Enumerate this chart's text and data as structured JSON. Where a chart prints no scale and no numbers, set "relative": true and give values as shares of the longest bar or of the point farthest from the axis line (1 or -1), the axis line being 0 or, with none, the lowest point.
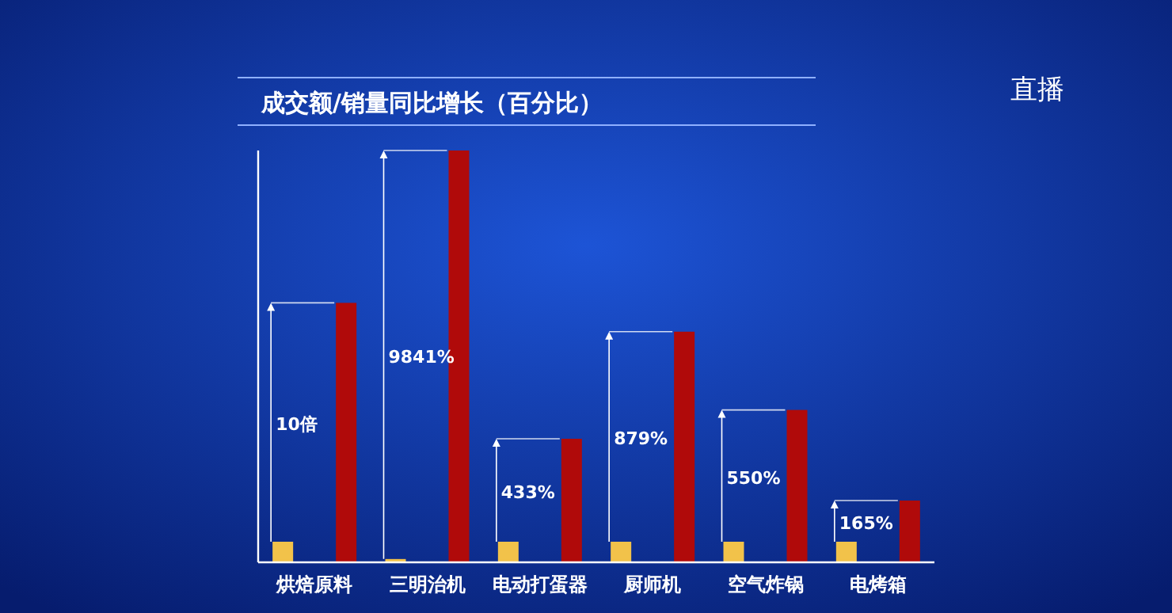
{
  "chart_data": {
    "type": "bar",
    "title": "成交额/销量同比增长（百分比）",
    "relative": true,
    "categories": [
      "烘焙原料",
      "三明治机",
      "电动打蛋器",
      "厨师机",
      "空气炸锅",
      "电烤箱"
    ],
    "series": [
      {
        "color": "#f2c24a",
        "values": [
          0.05,
          0.008,
          0.05,
          0.05,
          0.05,
          0.05
        ]
      },
      {
        "color": "#b00a0a",
        "values": [
          0.63,
          1,
          0.3,
          0.56,
          0.37,
          0.15
        ]
      }
    ],
    "annotations": [
      "直播",
      "10倍",
      "9841%",
      "433%",
      "879%",
      "550%",
      "165%"
    ]
  }
}
